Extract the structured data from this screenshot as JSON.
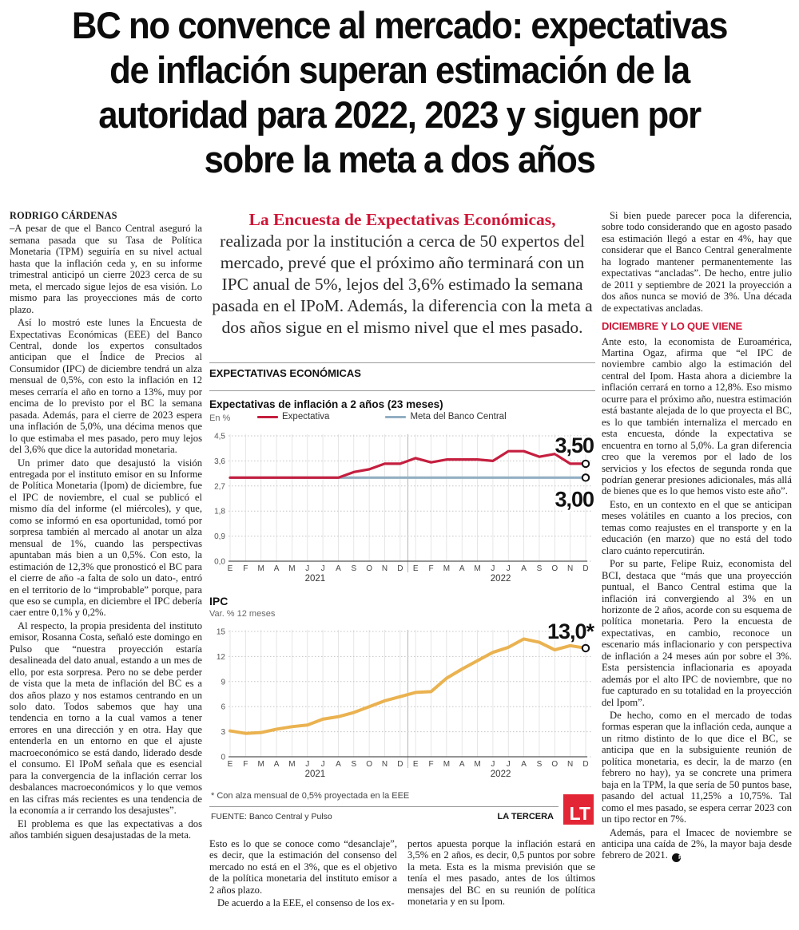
{
  "headline": {
    "lines": [
      "BC no convence al mercado: expectativas",
      "de inflación superan estimación de la",
      "autoridad para 2022, 2023 y siguen por",
      "sobre la meta a dos años"
    ]
  },
  "article": {
    "byline": "RODRIGO CÁRDENAS",
    "left": [
      "–A pesar de que el Banco Central aseguró la semana pasada que su Tasa de Política Monetaria (TPM) seguiría en su nivel actual hasta que la inflación ceda y, en su informe trimestral anticipó un cierre 2023 cerca de su meta, el mercado sigue lejos de esa visión. Lo mismo para las proyecciones más de corto plazo.",
      "Así lo mostró este lunes la Encuesta de Expectativas Económicas (EEE) del Banco Central, donde los expertos consultados anticipan que el Índice de Precios al Consumidor (IPC) de diciembre tendrá un alza mensual de 0,5%, con esto la inflación en 12 meses cerraría el año en torno a 13%, muy por encima de lo previsto por el BC la semana pasada. Además, para el cierre de 2023 espera una inflación de 5,0%, una décima menos que lo que estimaba el mes pasado, pero muy lejos del 3,6% que dice la autoridad monetaria.",
      "Un primer dato que desajustó la visión entregada por el instituto emisor en su Informe de Política Monetaria (Ipom) de diciembre, fue el IPC de noviembre, el cual se publicó el mismo día del informe (el miércoles), y que, como se informó en esa oportunidad, tomó por sorpresa también al mercado al anotar un alza mensual de 1%, cuando las perspectivas apuntaban más bien a un 0,5%. Con esto, la estimación de 12,3% que pronosticó el BC para el cierre de año -a falta de solo un dato-, entró en el territorio de lo “improbable” porque, para que eso se cumpla, en diciembre el IPC debería caer entre 0,1% y 0,2%.",
      "Al respecto, la propia presidenta del instituto emisor, Rosanna Costa, señaló este domingo en Pulso que “nuestra proyección estaría desalineada del dato anual, estando a un mes de ello, por esta sorpresa. Pero no se debe perder de vista que la meta de inflación del BC es a dos años plazo y nos estamos centrando en un solo dato. Todos sabemos que hay una tendencia en torno a la cual vamos a tener errores en una dirección y en otra. Hay que entenderla en un entorno en que el ajuste macroeconómico se está dando, liderado desde el consumo. El IPoM señala que es esencial para la convergencia de la inflación cerrar los desbalances macroeconómicos y lo que vemos en las cifras más recientes es una tendencia de la economía a ir cerrando los desajustes”.",
      "El problema es que las expectativas a dos años también siguen desajustadas de la meta."
    ],
    "bottom_left": [
      "Esto es lo que se conoce como “desanclaje”, es decir, que la estimación del consenso del mercado no está en el 3%, que es el objetivo de la política monetaria del instituto emisor a 2 años plazo.",
      "De acuerdo a la EEE, el consenso de los ex-"
    ],
    "bottom_right": [
      "pertos apuesta porque la inflación estará en 3,5% en 2 años, es decir, 0,5 puntos por sobre la meta. Esta es la misma previsión que se tenía el mes pasado, antes de los últimos mensajes del BC en su reunión de política monetaria y en su Ipom."
    ],
    "right": {
      "p1": "Si bien puede parecer poca la diferencia, sobre todo considerando que en agosto pasado esa estimación llegó a estar en 4%, hay que considerar que el Banco Central generalmente ha logrado mantener permanentemente las expectativas “ancladas”. De hecho, entre julio de 2011 y septiembre de 2021 la proyección a dos años nunca se movió de 3%. Una década de expectativas ancladas.",
      "subhead": "DICIEMBRE Y LO QUE VIENE",
      "rest": [
        "Ante esto, la economista de Euroamérica, Martina Ogaz, afirma que “el IPC de noviembre cambio algo la estimación del central del Ipom. Hasta ahora a diciembre la inflación cerrará en torno a 12,8%. Eso mismo ocurre para el próximo año, nuestra estimación está bastante alejada de lo que proyecta el BC, es lo que también internaliza el mercado en esta encuesta, dónde la expectativa se encuentra en torno al 5,0%. La gran diferencia creo que la veremos por el lado de los servicios y los efectos de segunda ronda que podrían generar presiones adicionales, más allá de bienes que es lo que hemos visto este año”.",
        "Esto, en un contexto en el que se anticipan meses volátiles en cuanto a los precios, con temas como reajustes en el transporte y en la educación (en marzo) que no está del todo claro cuánto repercutirán.",
        "Por su parte, Felipe Ruiz, economista del BCI, destaca que “más que una proyección puntual, el Banco Central estima que la inflación irá convergiendo al 3% en un horizonte de 2 años, acorde con su esquema de política monetaria. Pero la encuesta de expectativas, en cambio, reconoce un escenario más inflacionario y con perspectiva de inflación a 24 meses aún por sobre el 3%. Esta persistencia inflacionaria es apoyada además por el alto IPC de noviembre, que no fue capturado en su totalidad en la proyección del Ipom”.",
        "De hecho, como en el mercado de todas formas esperan que la inflación ceda, aunque a un ritmo distinto de lo que dice el BC, se anticipa que en la subsiguiente reunión de política monetaria, es decir, la de marzo (en febrero no hay), ya se concrete una primera baja en la TPM, la que sería de 50 puntos base, pasando del actual 11,25% a 10,75%. Tal como el mes pasado, se espera cerrar 2023 con un tipo rector en 7%.",
        "Además, para el Imacec de noviembre se anticipa una caída de 2%, la mayor baja desde febrero de 2021."
      ],
      "end_mark": "P"
    }
  },
  "pull_quote": {
    "lead": "La Encuesta de Expectativas Económicas,",
    "body": "realizada por la institución a cerca de 50 expertos del mercado, prevé que el próximo año terminará con un IPC anual de 5%, lejos del 3,6% estimado la semana pasada en el IPoM. Además, la diferencia con la meta a dos años sigue en el mismo nivel que el mes pasado."
  },
  "infographic": {
    "section_title": "EXPECTATIVAS ECONÓMICAS",
    "footnote": "* Con alza mensual de 0,5% proyectada en la EEE",
    "source": "FUENTE: Banco Central y Pulso",
    "brand": "LA TERCERA",
    "logo": "LT"
  },
  "chart_data": [
    {
      "type": "line",
      "title": "Expectativas de inflación a 2 años (23 meses)",
      "unit_label": "En %",
      "x": [
        "E",
        "F",
        "M",
        "A",
        "M",
        "J",
        "J",
        "A",
        "S",
        "O",
        "N",
        "D",
        "E",
        "F",
        "M",
        "A",
        "M",
        "J",
        "J",
        "A",
        "S",
        "O",
        "N",
        "D"
      ],
      "year_labels": [
        "2021",
        "2022"
      ],
      "ylim": [
        0,
        4.5
      ],
      "yticks": [
        0,
        0.9,
        1.8,
        2.7,
        3.6,
        4.5
      ],
      "ytick_labels": [
        "0,0",
        "0,9",
        "1,8",
        "2,7",
        "3,6",
        "4,5"
      ],
      "grid": true,
      "legend_position": "top",
      "series": [
        {
          "name": "Expectativa",
          "color": "#c51f3f",
          "width": 3.2,
          "values": [
            3.0,
            3.0,
            3.0,
            3.0,
            3.0,
            3.0,
            3.0,
            3.0,
            3.2,
            3.3,
            3.5,
            3.5,
            3.7,
            3.55,
            3.65,
            3.65,
            3.65,
            3.6,
            3.95,
            3.95,
            3.75,
            3.85,
            3.5,
            3.5
          ],
          "marker": true,
          "end_label": "3,50",
          "end_label_dy": -14
        },
        {
          "name": "Meta del Banco Central",
          "color": "#93afc3",
          "width": 3.2,
          "values": [
            3.0,
            3.0,
            3.0,
            3.0,
            3.0,
            3.0,
            3.0,
            3.0,
            3.0,
            3.0,
            3.0,
            3.0,
            3.0,
            3.0,
            3.0,
            3.0,
            3.0,
            3.0,
            3.0,
            3.0,
            3.0,
            3.0,
            3.0,
            3.0
          ],
          "marker": true,
          "end_label": "3,00",
          "end_label_dy": 36
        }
      ]
    },
    {
      "type": "line",
      "title": "IPC",
      "unit_label": "Var. % 12 meses",
      "x": [
        "E",
        "F",
        "M",
        "A",
        "M",
        "J",
        "J",
        "A",
        "S",
        "O",
        "N",
        "D",
        "E",
        "F",
        "M",
        "A",
        "M",
        "J",
        "J",
        "A",
        "S",
        "O",
        "N",
        "D"
      ],
      "year_labels": [
        "2021",
        "2022"
      ],
      "ylim": [
        0,
        15
      ],
      "yticks": [
        0,
        3,
        6,
        9,
        12,
        15
      ],
      "ytick_labels": [
        "0",
        "3",
        "6",
        "9",
        "12",
        "15"
      ],
      "grid": true,
      "series": [
        {
          "name": "IPC",
          "color": "#eab250",
          "width": 4,
          "values": [
            3.1,
            2.8,
            2.9,
            3.3,
            3.6,
            3.8,
            4.5,
            4.8,
            5.3,
            6.0,
            6.7,
            7.2,
            7.7,
            7.8,
            9.4,
            10.5,
            11.5,
            12.5,
            13.1,
            14.1,
            13.7,
            12.8,
            13.3,
            13.0
          ],
          "marker": true,
          "end_label": "13,0*",
          "end_label_dy": -12
        }
      ]
    }
  ],
  "colors": {
    "accent_red": "#d01637",
    "expectation_red": "#c51f3f",
    "target_blue": "#93afc3",
    "ipc_yellow": "#eab250",
    "brand_red": "#e32636",
    "text": "#1a1a1a"
  }
}
